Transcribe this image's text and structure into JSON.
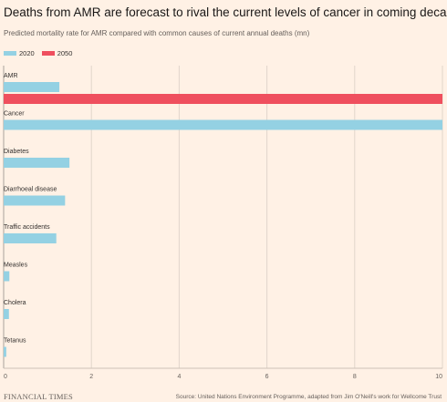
{
  "title": "Deaths from AMR are forecast to rival the current levels of cancer in coming decades",
  "subtitle": "Predicted mortality rate for AMR compared with common causes of current annual deaths (mn)",
  "footer": {
    "brand": "FINANCIAL TIMES",
    "source": "Source: United Nations Environment Programme, adapted from Jim O'Neill's work for Wellcome Trust"
  },
  "chart_data": {
    "type": "bar",
    "orientation": "horizontal",
    "categories": [
      "AMR",
      "Cancer",
      "Diabetes",
      "Diarrhoeal disease",
      "Traffic accidents",
      "Measles",
      "Cholera",
      "Tetanus"
    ],
    "series": [
      {
        "name": "2020",
        "color": "#94d1e3",
        "values": [
          1.27,
          10.0,
          1.5,
          1.4,
          1.2,
          0.13,
          0.12,
          0.06
        ]
      },
      {
        "name": "2050",
        "color": "#ef4f5e",
        "values": [
          10.0,
          null,
          null,
          null,
          null,
          null,
          null,
          null
        ]
      }
    ],
    "xlim": [
      0,
      10
    ],
    "xticks": [
      0,
      2,
      4,
      6,
      8,
      10
    ],
    "grid": true,
    "legend": "top-left"
  }
}
